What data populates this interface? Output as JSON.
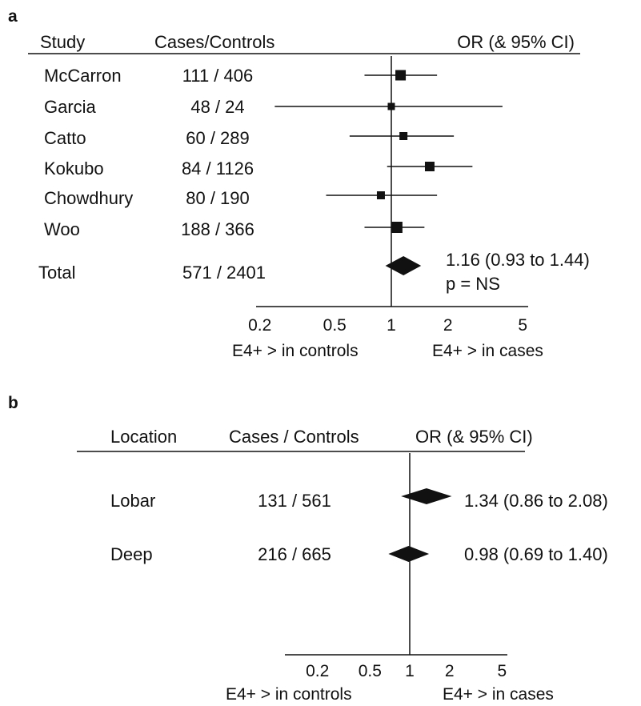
{
  "chart_data": [
    {
      "type": "forest",
      "panel": "a",
      "headers": {
        "label": "Study",
        "counts": "Cases/Controls",
        "effect": "OR (& 95% CI)"
      },
      "scale": "log",
      "null_value": 1,
      "xlim": [
        0.2,
        5
      ],
      "ticks": [
        "0.2",
        "0.5",
        "1",
        "2",
        "5"
      ],
      "direction_labels": {
        "left": "E4+ > in controls",
        "right": "E4+ > in cases"
      },
      "rows": [
        {
          "label": "McCarron",
          "counts": "111 / 406",
          "or": 1.12,
          "lo": 0.72,
          "hi": 1.75
        },
        {
          "label": "Garcia",
          "counts": "48 / 24",
          "or": 1.0,
          "lo": 0.24,
          "hi": 3.9
        },
        {
          "label": "Catto",
          "counts": "60 / 289",
          "or": 1.16,
          "lo": 0.6,
          "hi": 2.15
        },
        {
          "label": "Kokubo",
          "counts": "84 / 1126",
          "or": 1.6,
          "lo": 0.95,
          "hi": 2.7
        },
        {
          "label": "Chowdhury",
          "counts": "80 / 190",
          "or": 0.88,
          "lo": 0.45,
          "hi": 1.75
        },
        {
          "label": "Woo",
          "counts": "188 / 366",
          "or": 1.07,
          "lo": 0.72,
          "hi": 1.5
        }
      ],
      "total": {
        "label": "Total",
        "counts": "571 / 2401",
        "or": 1.16,
        "lo": 0.93,
        "hi": 1.44,
        "ci_text": "1.16 (0.93 to 1.44)",
        "p_text": "p = NS"
      }
    },
    {
      "type": "forest",
      "panel": "b",
      "headers": {
        "label": "Location",
        "counts": "Cases / Controls",
        "effect": "OR (& 95% CI)"
      },
      "scale": "log",
      "null_value": 1,
      "xlim": [
        0.2,
        5
      ],
      "ticks": [
        "0.2",
        "0.5",
        "1",
        "2",
        "5"
      ],
      "direction_labels": {
        "left": "E4+ > in controls",
        "right": "E4+ > in cases"
      },
      "rows": [
        {
          "label": "Lobar",
          "counts": "131 /  561",
          "or": 1.34,
          "lo": 0.86,
          "hi": 2.08,
          "ci_text": "1.34 (0.86 to 2.08)"
        },
        {
          "label": "Deep",
          "counts": "216 /  665",
          "or": 0.98,
          "lo": 0.69,
          "hi": 1.4,
          "ci_text": "0.98 (0.69 to 1.40)"
        }
      ]
    }
  ]
}
